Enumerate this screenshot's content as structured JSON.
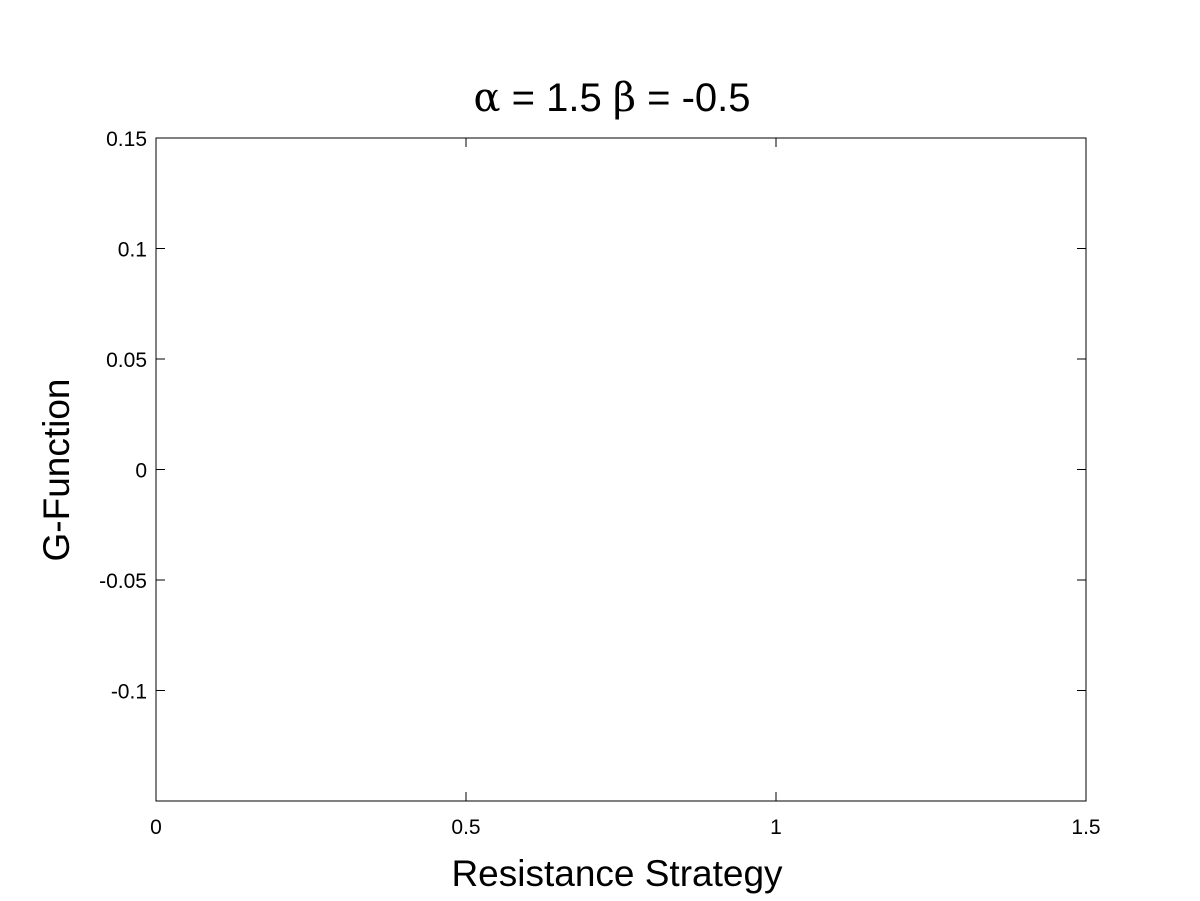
{
  "chart_data": {
    "type": "line",
    "title": "α = 1.5 β = -0.5",
    "xlabel": "Resistance Strategy",
    "ylabel": "G-Function",
    "xlim": [
      0,
      1.5
    ],
    "ylim": [
      -0.15,
      0.15
    ],
    "x_ticks": [
      0,
      0.5,
      1,
      1.5
    ],
    "x_tick_labels": [
      "0",
      "0.5",
      "1",
      "1.5"
    ],
    "y_ticks": [
      -0.1,
      -0.05,
      0,
      0.05,
      0.1,
      0.15
    ],
    "y_tick_labels": [
      "-0.1",
      "-0.05",
      "0",
      "0.05",
      "0.1",
      "0.15"
    ],
    "series": [],
    "grid": false,
    "legend": false,
    "colors": {
      "axes": "#000000",
      "background": "#ffffff"
    }
  }
}
